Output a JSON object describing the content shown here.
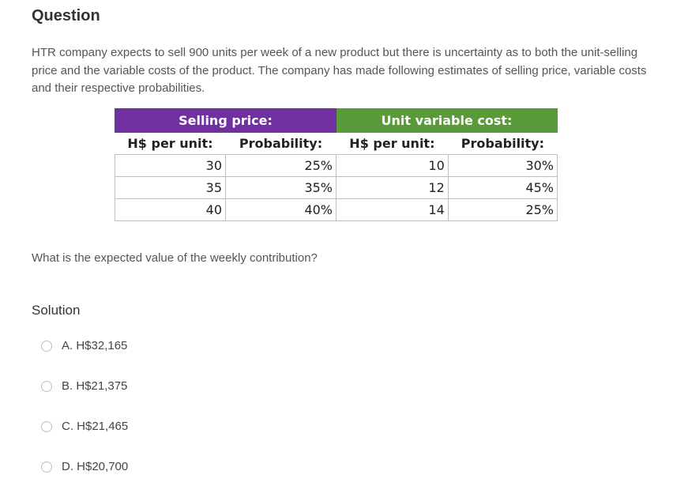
{
  "title": "Question",
  "paragraph": "HTR company expects to sell 900 units per week of a new product but there is uncertainty as to both the unit-selling price and the variable costs of the product. The company has made following estimates of selling price, variable costs and their respective probabilities.",
  "table": {
    "group1": "Selling price:",
    "group2": "Unit variable cost:",
    "sub": [
      "H$ per unit:",
      "Probability:",
      "H$ per unit:",
      "Probability:"
    ],
    "rows": [
      [
        "30",
        "25%",
        "10",
        "30%"
      ],
      [
        "35",
        "35%",
        "12",
        "45%"
      ],
      [
        "40",
        "40%",
        "14",
        "25%"
      ]
    ]
  },
  "question": "What is the expected value of the weekly contribution?",
  "solution_label": "Solution",
  "options": [
    "A. H$32,165",
    "B. H$21,375",
    "C. H$21,465",
    "D. H$20,700"
  ]
}
